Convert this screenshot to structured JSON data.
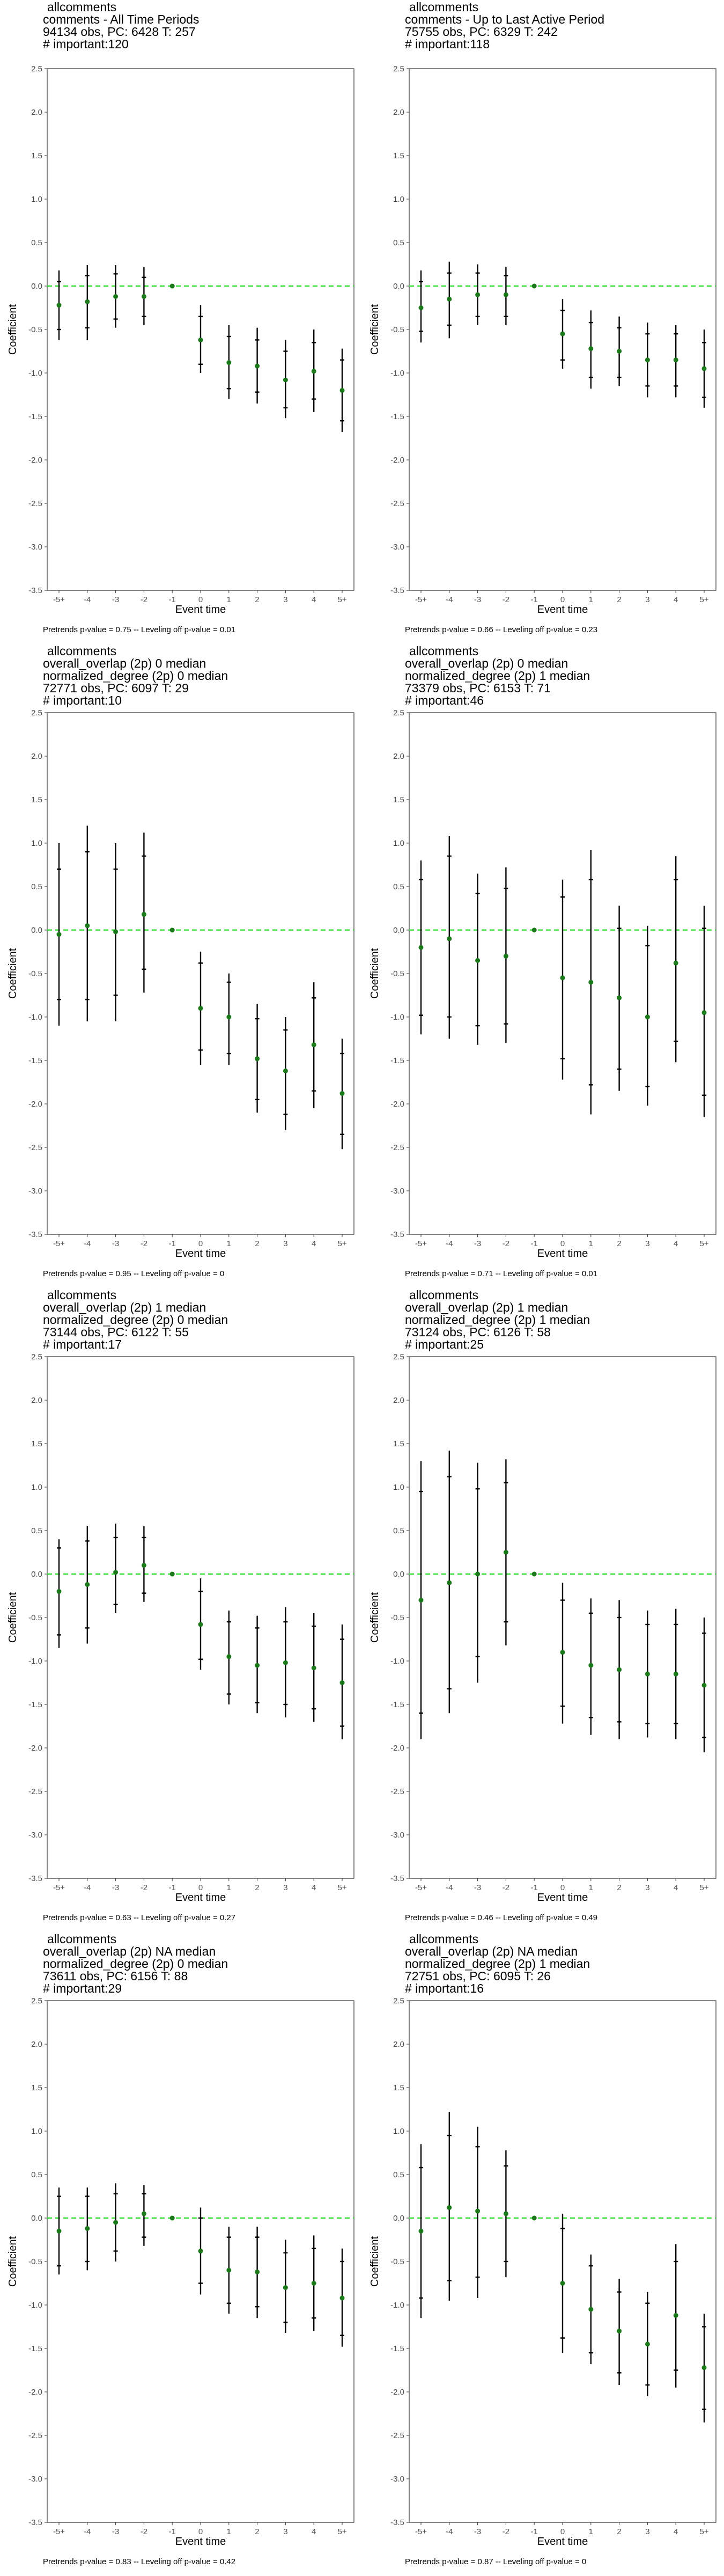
{
  "axis": {
    "xlabel": "Event time",
    "ylabel": "Coefficient",
    "yticks": [
      "2.5",
      "2.0",
      "1.5",
      "1.0",
      "0.5",
      "0.0",
      "-0.5",
      "-1.0",
      "-1.5",
      "-2.0",
      "-2.5",
      "-3.0",
      "-3.5"
    ],
    "xticks": [
      "-5+",
      "-4",
      "-3",
      "-2",
      "-1",
      "0",
      "1",
      "2",
      "3",
      "4",
      "5+"
    ]
  },
  "colors": {
    "point": "#1a7a1a",
    "refline": "#33dd33",
    "errbar": "#000000",
    "frame": "#333333"
  },
  "chart_data": [
    {
      "type": "scatter",
      "title_lines": [
        "allcomments",
        "comments - All Time Periods",
        "94134 obs, PC: 6428 T: 257",
        "# important:120"
      ],
      "footnote": "Pretrends p-value = 0.75 -- Leveling off p-value = 0.01",
      "ylim": [
        -3.5,
        2.5
      ],
      "reference_line": 0,
      "x": [
        "-5+",
        "-4",
        "-3",
        "-2",
        "-1",
        "0",
        "1",
        "2",
        "3",
        "4",
        "5+"
      ],
      "points": [
        {
          "est": -0.22,
          "lo": -0.62,
          "hi": 0.18,
          "ci90": [
            -0.5,
            0.05
          ]
        },
        {
          "est": -0.18,
          "lo": -0.62,
          "hi": 0.24,
          "ci90": [
            -0.48,
            0.12
          ]
        },
        {
          "est": -0.12,
          "lo": -0.48,
          "hi": 0.24,
          "ci90": [
            -0.38,
            0.14
          ]
        },
        {
          "est": -0.12,
          "lo": -0.45,
          "hi": 0.22,
          "ci90": [
            -0.35,
            0.1
          ]
        },
        {
          "est": 0,
          "lo": 0,
          "hi": 0,
          "ci90": [
            0,
            0
          ]
        },
        {
          "est": -0.62,
          "lo": -1.0,
          "hi": -0.22,
          "ci90": [
            -0.9,
            -0.35
          ]
        },
        {
          "est": -0.88,
          "lo": -1.3,
          "hi": -0.45,
          "ci90": [
            -1.18,
            -0.58
          ]
        },
        {
          "est": -0.92,
          "lo": -1.35,
          "hi": -0.48,
          "ci90": [
            -1.22,
            -0.62
          ]
        },
        {
          "est": -1.08,
          "lo": -1.52,
          "hi": -0.62,
          "ci90": [
            -1.4,
            -0.75
          ]
        },
        {
          "est": -0.98,
          "lo": -1.45,
          "hi": -0.5,
          "ci90": [
            -1.3,
            -0.65
          ]
        },
        {
          "est": -1.2,
          "lo": -1.68,
          "hi": -0.72,
          "ci90": [
            -1.55,
            -0.85
          ]
        }
      ]
    },
    {
      "type": "scatter",
      "title_lines": [
        "allcomments",
        "comments - Up to Last Active Period",
        "75755 obs, PC: 6329 T: 242",
        "# important:118"
      ],
      "footnote": "Pretrends p-value = 0.66 -- Leveling off p-value = 0.23",
      "ylim": [
        -3.5,
        2.5
      ],
      "reference_line": 0,
      "x": [
        "-5+",
        "-4",
        "-3",
        "-2",
        "-1",
        "0",
        "1",
        "2",
        "3",
        "4",
        "5+"
      ],
      "points": [
        {
          "est": -0.25,
          "lo": -0.65,
          "hi": 0.18,
          "ci90": [
            -0.52,
            0.05
          ]
        },
        {
          "est": -0.15,
          "lo": -0.6,
          "hi": 0.28,
          "ci90": [
            -0.45,
            0.15
          ]
        },
        {
          "est": -0.1,
          "lo": -0.45,
          "hi": 0.25,
          "ci90": [
            -0.35,
            0.15
          ]
        },
        {
          "est": -0.1,
          "lo": -0.45,
          "hi": 0.22,
          "ci90": [
            -0.35,
            0.12
          ]
        },
        {
          "est": 0,
          "lo": 0,
          "hi": 0,
          "ci90": [
            0,
            0
          ]
        },
        {
          "est": -0.55,
          "lo": -0.95,
          "hi": -0.15,
          "ci90": [
            -0.85,
            -0.28
          ]
        },
        {
          "est": -0.72,
          "lo": -1.18,
          "hi": -0.28,
          "ci90": [
            -1.05,
            -0.42
          ]
        },
        {
          "est": -0.75,
          "lo": -1.15,
          "hi": -0.35,
          "ci90": [
            -1.05,
            -0.48
          ]
        },
        {
          "est": -0.85,
          "lo": -1.28,
          "hi": -0.42,
          "ci90": [
            -1.15,
            -0.55
          ]
        },
        {
          "est": -0.85,
          "lo": -1.28,
          "hi": -0.45,
          "ci90": [
            -1.15,
            -0.55
          ]
        },
        {
          "est": -0.95,
          "lo": -1.4,
          "hi": -0.5,
          "ci90": [
            -1.28,
            -0.65
          ]
        }
      ]
    },
    {
      "type": "scatter",
      "title_lines": [
        "allcomments",
        "overall_overlap (2p) 0 median",
        "normalized_degree (2p) 0 median",
        "72771 obs, PC: 6097 T: 29",
        "# important:10"
      ],
      "footnote": "Pretrends p-value = 0.95 -- Leveling off p-value = 0",
      "ylim": [
        -3.5,
        2.5
      ],
      "reference_line": 0,
      "x": [
        "-5+",
        "-4",
        "-3",
        "-2",
        "-1",
        "0",
        "1",
        "2",
        "3",
        "4",
        "5+"
      ],
      "points": [
        {
          "est": -0.05,
          "lo": -1.1,
          "hi": 1.0,
          "ci90": [
            -0.8,
            0.7
          ]
        },
        {
          "est": 0.05,
          "lo": -1.05,
          "hi": 1.2,
          "ci90": [
            -0.8,
            0.9
          ]
        },
        {
          "est": -0.02,
          "lo": -1.05,
          "hi": 1.0,
          "ci90": [
            -0.75,
            0.7
          ]
        },
        {
          "est": 0.18,
          "lo": -0.72,
          "hi": 1.12,
          "ci90": [
            -0.45,
            0.85
          ]
        },
        {
          "est": 0,
          "lo": 0,
          "hi": 0,
          "ci90": [
            0,
            0
          ]
        },
        {
          "est": -0.9,
          "lo": -1.55,
          "hi": -0.25,
          "ci90": [
            -1.38,
            -0.38
          ]
        },
        {
          "est": -1.0,
          "lo": -1.55,
          "hi": -0.5,
          "ci90": [
            -1.42,
            -0.6
          ]
        },
        {
          "est": -1.48,
          "lo": -2.1,
          "hi": -0.85,
          "ci90": [
            -1.95,
            -1.02
          ]
        },
        {
          "est": -1.62,
          "lo": -2.3,
          "hi": -1.0,
          "ci90": [
            -2.12,
            -1.15
          ]
        },
        {
          "est": -1.32,
          "lo": -2.05,
          "hi": -0.6,
          "ci90": [
            -1.85,
            -0.78
          ]
        },
        {
          "est": -1.88,
          "lo": -2.52,
          "hi": -1.25,
          "ci90": [
            -2.35,
            -1.42
          ]
        }
      ]
    },
    {
      "type": "scatter",
      "title_lines": [
        "allcomments",
        "overall_overlap (2p) 0 median",
        "normalized_degree (2p) 1 median",
        "73379 obs, PC: 6153 T: 71",
        "# important:46"
      ],
      "footnote": "Pretrends p-value = 0.71 -- Leveling off p-value = 0.01",
      "ylim": [
        -3.5,
        2.5
      ],
      "reference_line": 0,
      "x": [
        "-5+",
        "-4",
        "-3",
        "-2",
        "-1",
        "0",
        "1",
        "2",
        "3",
        "4",
        "5+"
      ],
      "points": [
        {
          "est": -0.2,
          "lo": -1.2,
          "hi": 0.8,
          "ci90": [
            -0.98,
            0.58
          ]
        },
        {
          "est": -0.1,
          "lo": -1.25,
          "hi": 1.08,
          "ci90": [
            -1.0,
            0.85
          ]
        },
        {
          "est": -0.35,
          "lo": -1.32,
          "hi": 0.65,
          "ci90": [
            -1.1,
            0.42
          ]
        },
        {
          "est": -0.3,
          "lo": -1.3,
          "hi": 0.72,
          "ci90": [
            -1.08,
            0.48
          ]
        },
        {
          "est": 0,
          "lo": 0,
          "hi": 0,
          "ci90": [
            0,
            0
          ]
        },
        {
          "est": -0.55,
          "lo": -1.72,
          "hi": 0.58,
          "ci90": [
            -1.48,
            0.38
          ]
        },
        {
          "est": -0.6,
          "lo": -2.12,
          "hi": 0.92,
          "ci90": [
            -1.78,
            0.58
          ]
        },
        {
          "est": -0.78,
          "lo": -1.85,
          "hi": 0.28,
          "ci90": [
            -1.6,
            0.02
          ]
        },
        {
          "est": -1.0,
          "lo": -2.02,
          "hi": 0.05,
          "ci90": [
            -1.8,
            -0.18
          ]
        },
        {
          "est": -0.38,
          "lo": -1.52,
          "hi": 0.85,
          "ci90": [
            -1.28,
            0.58
          ]
        },
        {
          "est": -0.95,
          "lo": -2.15,
          "hi": 0.28,
          "ci90": [
            -1.9,
            0.02
          ]
        }
      ]
    },
    {
      "type": "scatter",
      "title_lines": [
        "allcomments",
        "overall_overlap (2p) 1 median",
        "normalized_degree (2p) 0 median",
        "73144 obs, PC: 6122 T: 55",
        "# important:17"
      ],
      "footnote": "Pretrends p-value = 0.63 -- Leveling off p-value = 0.27",
      "ylim": [
        -3.5,
        2.5
      ],
      "reference_line": 0,
      "x": [
        "-5+",
        "-4",
        "-3",
        "-2",
        "-1",
        "0",
        "1",
        "2",
        "3",
        "4",
        "5+"
      ],
      "points": [
        {
          "est": -0.2,
          "lo": -0.85,
          "hi": 0.4,
          "ci90": [
            -0.7,
            0.3
          ]
        },
        {
          "est": -0.12,
          "lo": -0.8,
          "hi": 0.55,
          "ci90": [
            -0.62,
            0.38
          ]
        },
        {
          "est": 0.02,
          "lo": -0.45,
          "hi": 0.58,
          "ci90": [
            -0.35,
            0.42
          ]
        },
        {
          "est": 0.1,
          "lo": -0.32,
          "hi": 0.55,
          "ci90": [
            -0.22,
            0.42
          ]
        },
        {
          "est": 0,
          "lo": 0,
          "hi": 0,
          "ci90": [
            0,
            0
          ]
        },
        {
          "est": -0.58,
          "lo": -1.1,
          "hi": -0.05,
          "ci90": [
            -0.98,
            -0.2
          ]
        },
        {
          "est": -0.95,
          "lo": -1.5,
          "hi": -0.42,
          "ci90": [
            -1.38,
            -0.55
          ]
        },
        {
          "est": -1.05,
          "lo": -1.6,
          "hi": -0.48,
          "ci90": [
            -1.48,
            -0.62
          ]
        },
        {
          "est": -1.02,
          "lo": -1.65,
          "hi": -0.38,
          "ci90": [
            -1.5,
            -0.55
          ]
        },
        {
          "est": -1.08,
          "lo": -1.7,
          "hi": -0.45,
          "ci90": [
            -1.55,
            -0.6
          ]
        },
        {
          "est": -1.25,
          "lo": -1.9,
          "hi": -0.58,
          "ci90": [
            -1.75,
            -0.75
          ]
        }
      ]
    },
    {
      "type": "scatter",
      "title_lines": [
        "allcomments",
        "overall_overlap (2p) 1 median",
        "normalized_degree (2p) 1 median",
        "73124 obs, PC: 6126 T: 58",
        "# important:25"
      ],
      "footnote": "Pretrends p-value = 0.46 -- Leveling off p-value = 0.49",
      "ylim": [
        -3.5,
        2.5
      ],
      "reference_line": 0,
      "x": [
        "-5+",
        "-4",
        "-3",
        "-2",
        "-1",
        "0",
        "1",
        "2",
        "3",
        "4",
        "5+"
      ],
      "points": [
        {
          "est": -0.3,
          "lo": -1.9,
          "hi": 1.3,
          "ci90": [
            -1.6,
            0.95
          ]
        },
        {
          "est": -0.1,
          "lo": -1.6,
          "hi": 1.42,
          "ci90": [
            -1.32,
            1.12
          ]
        },
        {
          "est": 0.0,
          "lo": -1.25,
          "hi": 1.28,
          "ci90": [
            -0.95,
            0.98
          ]
        },
        {
          "est": 0.25,
          "lo": -0.82,
          "hi": 1.32,
          "ci90": [
            -0.55,
            1.05
          ]
        },
        {
          "est": 0,
          "lo": 0,
          "hi": 0,
          "ci90": [
            0,
            0
          ]
        },
        {
          "est": -0.9,
          "lo": -1.72,
          "hi": -0.1,
          "ci90": [
            -1.52,
            -0.3
          ]
        },
        {
          "est": -1.05,
          "lo": -1.85,
          "hi": -0.28,
          "ci90": [
            -1.65,
            -0.45
          ]
        },
        {
          "est": -1.1,
          "lo": -1.9,
          "hi": -0.3,
          "ci90": [
            -1.7,
            -0.5
          ]
        },
        {
          "est": -1.15,
          "lo": -1.88,
          "hi": -0.42,
          "ci90": [
            -1.72,
            -0.58
          ]
        },
        {
          "est": -1.15,
          "lo": -1.9,
          "hi": -0.4,
          "ci90": [
            -1.72,
            -0.58
          ]
        },
        {
          "est": -1.28,
          "lo": -2.05,
          "hi": -0.5,
          "ci90": [
            -1.88,
            -0.68
          ]
        }
      ]
    },
    {
      "type": "scatter",
      "title_lines": [
        "allcomments",
        "overall_overlap (2p) NA median",
        "normalized_degree (2p) 0 median",
        "73611 obs, PC: 6156 T: 88",
        "# important:29"
      ],
      "footnote": "Pretrends p-value = 0.83 -- Leveling off p-value = 0.42",
      "ylim": [
        -3.5,
        2.5
      ],
      "reference_line": 0,
      "x": [
        "-5+",
        "-4",
        "-3",
        "-2",
        "-1",
        "0",
        "1",
        "2",
        "3",
        "4",
        "5+"
      ],
      "points": [
        {
          "est": -0.15,
          "lo": -0.65,
          "hi": 0.35,
          "ci90": [
            -0.55,
            0.25
          ]
        },
        {
          "est": -0.12,
          "lo": -0.6,
          "hi": 0.35,
          "ci90": [
            -0.5,
            0.25
          ]
        },
        {
          "est": -0.05,
          "lo": -0.5,
          "hi": 0.4,
          "ci90": [
            -0.38,
            0.28
          ]
        },
        {
          "est": 0.05,
          "lo": -0.32,
          "hi": 0.38,
          "ci90": [
            -0.22,
            0.28
          ]
        },
        {
          "est": 0,
          "lo": 0,
          "hi": 0,
          "ci90": [
            0,
            0
          ]
        },
        {
          "est": -0.38,
          "lo": -0.88,
          "hi": 0.12,
          "ci90": [
            -0.75,
            0.0
          ]
        },
        {
          "est": -0.6,
          "lo": -1.1,
          "hi": -0.1,
          "ci90": [
            -0.98,
            -0.22
          ]
        },
        {
          "est": -0.62,
          "lo": -1.15,
          "hi": -0.1,
          "ci90": [
            -1.02,
            -0.22
          ]
        },
        {
          "est": -0.8,
          "lo": -1.32,
          "hi": -0.25,
          "ci90": [
            -1.2,
            -0.4
          ]
        },
        {
          "est": -0.75,
          "lo": -1.3,
          "hi": -0.2,
          "ci90": [
            -1.15,
            -0.35
          ]
        },
        {
          "est": -0.92,
          "lo": -1.48,
          "hi": -0.35,
          "ci90": [
            -1.35,
            -0.5
          ]
        }
      ]
    },
    {
      "type": "scatter",
      "title_lines": [
        "allcomments",
        "overall_overlap (2p) NA median",
        "normalized_degree (2p) 1 median",
        "72751 obs, PC: 6095 T: 26",
        "# important:16"
      ],
      "footnote": "Pretrends p-value = 0.87 -- Leveling off p-value = 0",
      "ylim": [
        -3.5,
        2.5
      ],
      "reference_line": 0,
      "x": [
        "-5+",
        "-4",
        "-3",
        "-2",
        "-1",
        "0",
        "1",
        "2",
        "3",
        "4",
        "5+"
      ],
      "points": [
        {
          "est": -0.15,
          "lo": -1.15,
          "hi": 0.85,
          "ci90": [
            -0.92,
            0.58
          ]
        },
        {
          "est": 0.12,
          "lo": -0.95,
          "hi": 1.22,
          "ci90": [
            -0.72,
            0.95
          ]
        },
        {
          "est": 0.08,
          "lo": -0.92,
          "hi": 1.05,
          "ci90": [
            -0.68,
            0.82
          ]
        },
        {
          "est": 0.05,
          "lo": -0.68,
          "hi": 0.78,
          "ci90": [
            -0.5,
            0.6
          ]
        },
        {
          "est": 0,
          "lo": 0,
          "hi": 0,
          "ci90": [
            0,
            0
          ]
        },
        {
          "est": -0.75,
          "lo": -1.55,
          "hi": 0.05,
          "ci90": [
            -1.38,
            -0.12
          ]
        },
        {
          "est": -1.05,
          "lo": -1.68,
          "hi": -0.42,
          "ci90": [
            -1.55,
            -0.55
          ]
        },
        {
          "est": -1.3,
          "lo": -1.92,
          "hi": -0.7,
          "ci90": [
            -1.78,
            -0.85
          ]
        },
        {
          "est": -1.45,
          "lo": -2.05,
          "hi": -0.85,
          "ci90": [
            -1.92,
            -0.98
          ]
        },
        {
          "est": -1.12,
          "lo": -1.95,
          "hi": -0.3,
          "ci90": [
            -1.75,
            -0.5
          ]
        },
        {
          "est": -1.72,
          "lo": -2.35,
          "hi": -1.1,
          "ci90": [
            -2.2,
            -1.25
          ]
        }
      ]
    }
  ]
}
